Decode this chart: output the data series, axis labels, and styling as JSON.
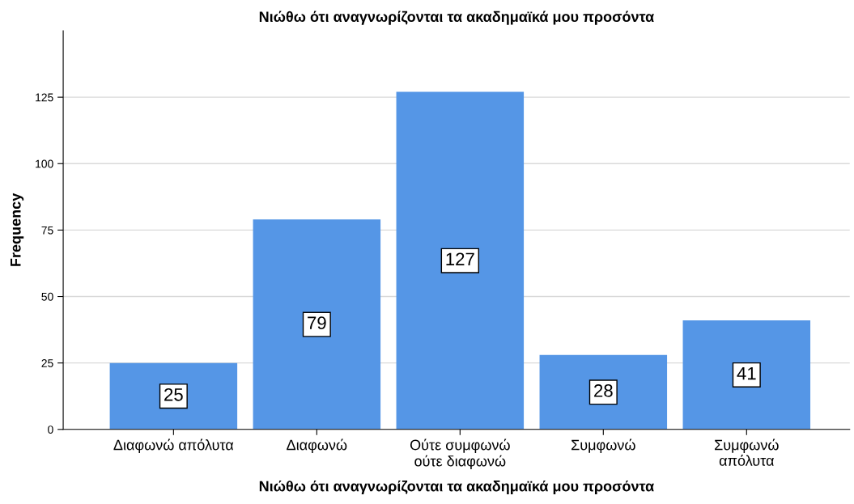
{
  "chart_data": {
    "type": "bar",
    "title": "Νιώθω ότι αναγνωρίζονται τα ακαδημαϊκά μου προσόντα",
    "xlabel": "Νιώθω ότι αναγνωρίζονται τα ακαδημαϊκά μου προσόντα",
    "ylabel": "Frequency",
    "categories": [
      "Διαφωνώ απόλυτα",
      "Διαφωνώ",
      "Ούτε συμφωνώ\nούτε διαφωνώ",
      "Συμφωνώ",
      "Συμφωνώ\nαπόλυτα"
    ],
    "values": [
      25,
      79,
      127,
      28,
      41
    ],
    "color": "#5596e6",
    "ylim": [
      0,
      150
    ],
    "yticks": [
      0,
      25,
      50,
      75,
      100,
      125
    ],
    "grid": "y",
    "data_labels": true
  }
}
